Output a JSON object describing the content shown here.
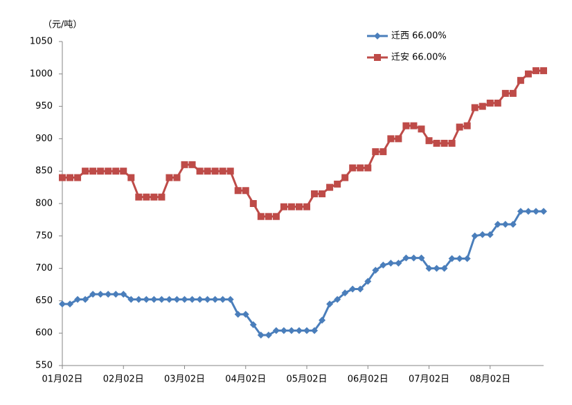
{
  "chart_data": {
    "type": "line",
    "y_label": "（元/吨）",
    "categories": [
      "01月02日",
      null,
      null,
      null,
      null,
      null,
      null,
      null,
      "02月02日",
      null,
      null,
      null,
      null,
      null,
      null,
      null,
      "03月02日",
      null,
      null,
      null,
      null,
      null,
      null,
      null,
      "04月02日",
      null,
      null,
      null,
      null,
      null,
      null,
      null,
      "05月02日",
      null,
      null,
      null,
      null,
      null,
      null,
      null,
      "06月02日",
      null,
      null,
      null,
      null,
      null,
      null,
      null,
      "07月02日",
      null,
      null,
      null,
      null,
      null,
      null,
      null,
      "08月02日",
      null,
      null,
      null,
      null,
      null,
      null,
      null
    ],
    "series": [
      {
        "name": "迁西 66.00%",
        "color": "#4a7ebb",
        "marker": "diamond",
        "values": [
          645,
          645,
          652,
          652,
          660,
          660,
          660,
          660,
          660,
          652,
          652,
          652,
          652,
          652,
          652,
          652,
          652,
          652,
          652,
          652,
          652,
          652,
          652,
          629,
          629,
          613,
          597,
          597,
          604,
          604,
          604,
          604,
          604,
          604,
          620,
          645,
          652,
          662,
          668,
          668,
          680,
          697,
          705,
          708,
          708,
          716,
          716,
          716,
          700,
          700,
          700,
          715,
          715,
          715,
          750,
          752,
          752,
          768,
          768,
          768,
          788,
          788,
          788,
          788
        ]
      },
      {
        "name": "迁安 66.00%",
        "color": "#be4b48",
        "marker": "square",
        "values": [
          840,
          840,
          840,
          850,
          850,
          850,
          850,
          850,
          850,
          840,
          810,
          810,
          810,
          810,
          840,
          840,
          860,
          860,
          850,
          850,
          850,
          850,
          850,
          820,
          820,
          800,
          780,
          780,
          780,
          795,
          795,
          795,
          795,
          815,
          815,
          825,
          830,
          840,
          855,
          855,
          855,
          880,
          880,
          900,
          900,
          920,
          920,
          915,
          897,
          893,
          893,
          893,
          918,
          920,
          948,
          950,
          955,
          955,
          970,
          970,
          990,
          1000,
          1005,
          1005
        ]
      }
    ],
    "ylim": [
      550,
      1050
    ],
    "yticks": [
      550,
      600,
      650,
      700,
      750,
      800,
      850,
      900,
      950,
      1000,
      1050
    ]
  }
}
